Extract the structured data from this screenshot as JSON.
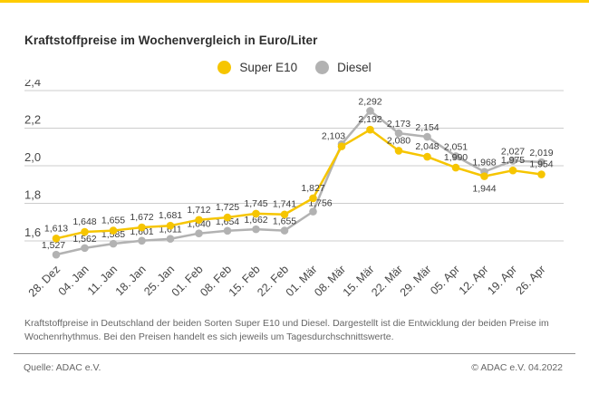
{
  "page": {
    "title": "Kraftstoffpreise im Wochenvergleich in Euro/Liter",
    "description": "Kraftstoffpreise in Deutschland der beiden Sorten Super E10 und Diesel. Dargestellt ist die Entwicklung der beiden Preise im Wochenrhythmus. Bei den Preisen handelt es sich jeweils um Tagesdurchschnittswerte.",
    "source": "Quelle: ADAC e.V.",
    "copyright": "© ADAC e.V. 04.2022"
  },
  "colors": {
    "accent_yellow": "#FFCC00",
    "super_e10": "#F6C500",
    "diesel": "#B2B2B2",
    "grid": "#CCCCCC",
    "text_dark": "#2E2E2E",
    "text_muted": "#666666"
  },
  "chart_data": {
    "type": "line",
    "title": "Kraftstoffpreise im Wochenvergleich in Euro/Liter",
    "xlabel": "",
    "ylabel": "Euro/Liter",
    "grid": true,
    "legend_position": "top-center",
    "ylim": [
      1.45,
      2.45
    ],
    "y_ticks": [
      "2,4",
      "2,2",
      "2,0",
      "1,8",
      "1,6"
    ],
    "y_tick_values": [
      2.4,
      2.2,
      2.0,
      1.8,
      1.6
    ],
    "categories": [
      "28. Dez",
      "04. Jan",
      "11. Jan",
      "18. Jan",
      "25. Jan",
      "01. Feb",
      "08. Feb",
      "15. Feb",
      "22. Feb",
      "01. Mär",
      "08. Mär",
      "15. Mär",
      "22. Mär",
      "29. Mär",
      "05. Apr",
      "12. Apr",
      "19. Apr",
      "26. Apr"
    ],
    "series": [
      {
        "name": "Super E10",
        "color": "#F6C500",
        "values": [
          1.613,
          1.648,
          1.655,
          1.672,
          1.681,
          1.712,
          1.725,
          1.745,
          1.741,
          1.827,
          2.103,
          2.192,
          2.08,
          2.048,
          1.99,
          1.944,
          1.975,
          1.954
        ],
        "labels": [
          "1,613",
          "1,648",
          "1,655",
          "1,672",
          "1,681",
          "1,712",
          "1,725",
          "1,745",
          "1,741",
          "1,827",
          "2,103",
          "2,192",
          "2,080",
          "2,048",
          "1,990",
          "1,944",
          "1,975",
          "1,954"
        ]
      },
      {
        "name": "Diesel",
        "color": "#B2B2B2",
        "values": [
          1.527,
          1.562,
          1.585,
          1.601,
          1.611,
          1.64,
          1.654,
          1.662,
          1.655,
          1.756,
          2.115,
          2.292,
          2.173,
          2.154,
          2.051,
          1.968,
          2.027,
          2.019
        ],
        "labels": [
          "1,527",
          "1,562",
          "1,585",
          "1,601",
          "1,611",
          "1,640",
          "1,654",
          "1,662",
          "1,655",
          "1,756",
          "",
          "2,292",
          "2,173",
          "2,154",
          "2,051",
          "1,968",
          "2,027",
          "2,019"
        ]
      }
    ]
  }
}
